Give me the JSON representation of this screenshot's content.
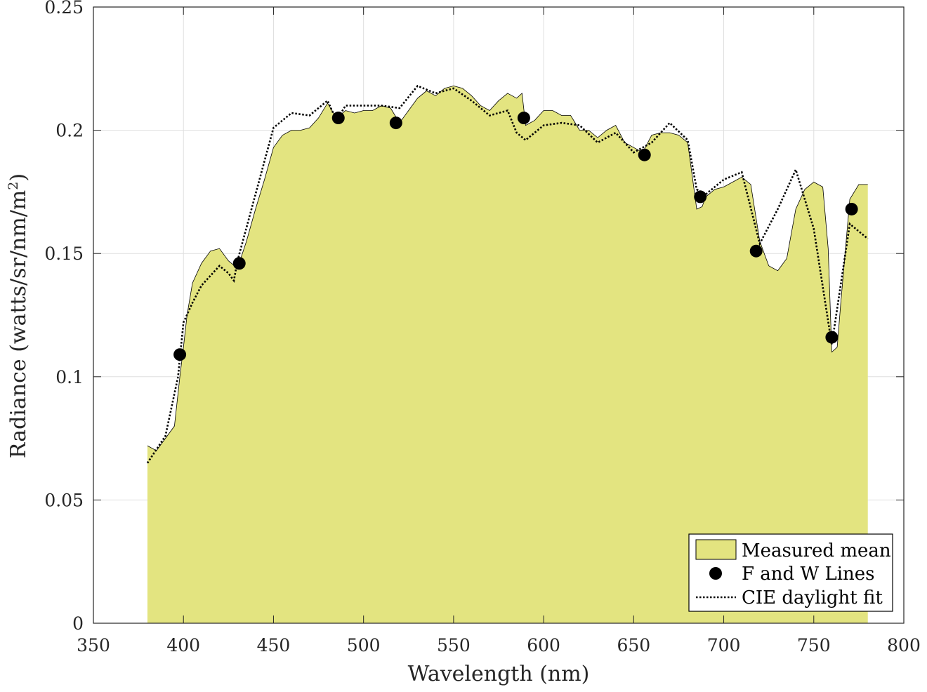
{
  "chart_data": {
    "type": "area",
    "title": "",
    "xlabel": "Wavelength (nm)",
    "ylabel": "Radiance (watts/sr/nm/m²)",
    "ylabel_parts": {
      "main": "Radiance (watts/sr/nm/m",
      "sup": "2",
      "close": ")"
    },
    "xlim": [
      350,
      800
    ],
    "ylim": [
      0,
      0.25
    ],
    "x_ticks": [
      350,
      400,
      450,
      500,
      550,
      600,
      650,
      700,
      750,
      800
    ],
    "x_tick_labels": [
      "350",
      "400",
      "450",
      "500",
      "550",
      "600",
      "650",
      "700",
      "750",
      "800"
    ],
    "y_ticks": [
      0,
      0.05,
      0.1,
      0.15,
      0.2,
      0.25
    ],
    "y_tick_labels": [
      "0",
      "0.05",
      "0.1",
      "0.15",
      "0.2",
      "0.25"
    ],
    "grid": true,
    "legend_position": "bottom-right",
    "series": [
      {
        "name": "Measured mean",
        "kind": "area",
        "color": "#e3e480",
        "edge_color": "#000000",
        "x": [
          380,
          385,
          390,
          395,
          398,
          400,
          402,
          405,
          410,
          415,
          420,
          425,
          430,
          435,
          440,
          445,
          450,
          455,
          460,
          465,
          470,
          475,
          480,
          485,
          490,
          495,
          500,
          505,
          510,
          515,
          520,
          525,
          530,
          535,
          540,
          545,
          550,
          555,
          560,
          565,
          570,
          575,
          580,
          585,
          588,
          590,
          595,
          600,
          605,
          610,
          615,
          620,
          625,
          630,
          635,
          640,
          645,
          650,
          655,
          660,
          665,
          670,
          675,
          680,
          685,
          688,
          690,
          695,
          700,
          705,
          710,
          715,
          720,
          725,
          730,
          735,
          740,
          745,
          750,
          755,
          758,
          760,
          763,
          765,
          770,
          775,
          780
        ],
        "y": [
          0.072,
          0.07,
          0.075,
          0.08,
          0.1,
          0.112,
          0.125,
          0.138,
          0.146,
          0.151,
          0.152,
          0.147,
          0.144,
          0.155,
          0.168,
          0.18,
          0.193,
          0.198,
          0.2,
          0.2,
          0.201,
          0.205,
          0.211,
          0.205,
          0.208,
          0.207,
          0.208,
          0.208,
          0.21,
          0.209,
          0.203,
          0.208,
          0.213,
          0.216,
          0.214,
          0.217,
          0.218,
          0.217,
          0.214,
          0.21,
          0.208,
          0.212,
          0.215,
          0.213,
          0.215,
          0.202,
          0.204,
          0.208,
          0.208,
          0.206,
          0.206,
          0.2,
          0.2,
          0.197,
          0.2,
          0.202,
          0.195,
          0.193,
          0.191,
          0.198,
          0.199,
          0.199,
          0.198,
          0.195,
          0.168,
          0.169,
          0.173,
          0.176,
          0.177,
          0.179,
          0.181,
          0.178,
          0.155,
          0.145,
          0.143,
          0.148,
          0.168,
          0.176,
          0.179,
          0.177,
          0.152,
          0.11,
          0.112,
          0.13,
          0.172,
          0.178,
          0.178
        ]
      },
      {
        "name": "F and W Lines",
        "kind": "markers",
        "color": "#000000",
        "x": [
          398,
          431,
          486,
          518,
          589,
          656,
          687,
          718,
          760,
          771
        ],
        "y": [
          0.109,
          0.146,
          0.205,
          0.203,
          0.205,
          0.19,
          0.173,
          0.151,
          0.116,
          0.168
        ]
      },
      {
        "name": "CIE daylight fit",
        "kind": "dotted-line",
        "color": "#000000",
        "x": [
          380,
          390,
          397,
          400,
          405,
          410,
          415,
          420,
          425,
          428,
          430,
          440,
          450,
          460,
          470,
          480,
          485,
          490,
          500,
          510,
          520,
          530,
          540,
          550,
          560,
          570,
          580,
          585,
          590,
          600,
          610,
          620,
          630,
          640,
          650,
          660,
          670,
          680,
          685,
          690,
          700,
          710,
          720,
          730,
          740,
          750,
          760,
          770,
          780
        ],
        "y": [
          0.065,
          0.076,
          0.1,
          0.122,
          0.13,
          0.137,
          0.141,
          0.145,
          0.142,
          0.139,
          0.147,
          0.174,
          0.201,
          0.207,
          0.206,
          0.212,
          0.204,
          0.21,
          0.21,
          0.21,
          0.209,
          0.218,
          0.215,
          0.217,
          0.212,
          0.206,
          0.208,
          0.199,
          0.196,
          0.202,
          0.203,
          0.202,
          0.195,
          0.199,
          0.191,
          0.195,
          0.203,
          0.196,
          0.176,
          0.174,
          0.18,
          0.183,
          0.154,
          0.168,
          0.184,
          0.16,
          0.113,
          0.162,
          0.156
        ]
      }
    ]
  }
}
